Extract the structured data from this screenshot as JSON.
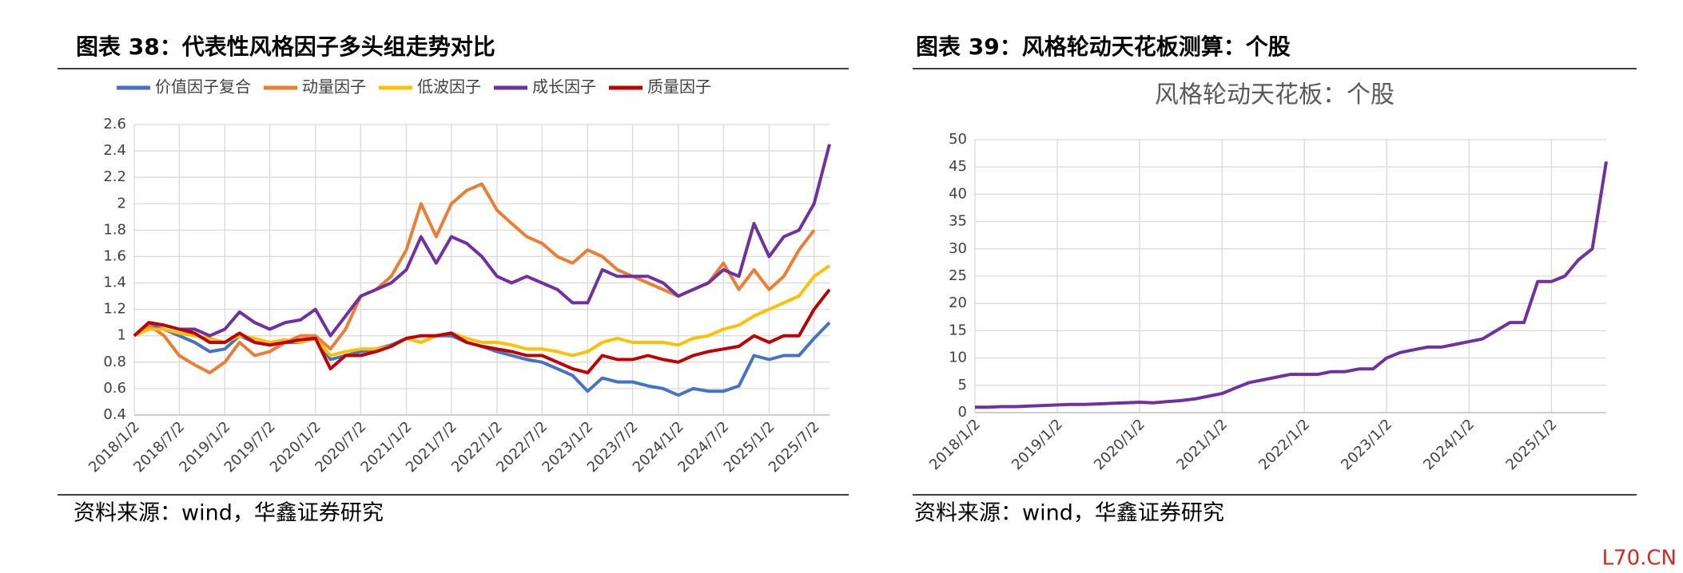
{
  "chart_data": [
    {
      "type": "line",
      "title": "图表 38：代表性风格因子多头组走势对比",
      "note": "资料来源：wind，华鑫证券研究",
      "x": [
        "2018/1/2",
        "2018/3/2",
        "2018/5/2",
        "2018/7/2",
        "2018/9/2",
        "2018/11/2",
        "2019/1/2",
        "2019/3/2",
        "2019/5/2",
        "2019/7/2",
        "2019/9/2",
        "2019/11/2",
        "2020/1/2",
        "2020/3/2",
        "2020/5/2",
        "2020/7/2",
        "2020/9/2",
        "2020/11/2",
        "2021/1/2",
        "2021/3/2",
        "2021/5/2",
        "2021/7/2",
        "2021/9/2",
        "2021/11/2",
        "2022/1/2",
        "2022/3/2",
        "2022/5/2",
        "2022/7/2",
        "2022/9/2",
        "2022/11/2",
        "2023/1/2",
        "2023/3/2",
        "2023/5/2",
        "2023/7/2",
        "2023/9/2",
        "2023/11/2",
        "2024/1/2",
        "2024/3/2",
        "2024/5/2",
        "2024/7/2",
        "2024/9/2",
        "2024/11/2",
        "2025/1/2",
        "2025/3/2",
        "2025/5/2",
        "2025/7/2",
        "2025/9/2"
      ],
      "xlim": [
        "2018/1/2",
        "2025/9/2"
      ],
      "xticks": [
        "2018/1/2",
        "2018/7/2",
        "2019/1/2",
        "2019/7/2",
        "2020/1/2",
        "2020/7/2",
        "2021/1/2",
        "2021/7/2",
        "2022/1/2",
        "2022/7/2",
        "2023/1/2",
        "2023/7/2",
        "2024/1/2",
        "2024/7/2",
        "2025/1/2",
        "2025/7/2"
      ],
      "ylim": [
        0.4,
        2.6
      ],
      "yticks": [
        0.4,
        0.6,
        0.8,
        1,
        1.2,
        1.4,
        1.6,
        1.8,
        2,
        2.2,
        2.4,
        2.6
      ],
      "grid": true,
      "legend": "top",
      "series": [
        {
          "name": "价值因子复合",
          "color": "#4472c4",
          "values": [
            1.0,
            1.08,
            1.05,
            1.0,
            0.95,
            0.88,
            0.9,
            1.0,
            0.95,
            0.93,
            0.95,
            0.95,
            0.98,
            0.82,
            0.85,
            0.88,
            0.9,
            0.93,
            0.98,
            0.95,
            1.0,
            1.0,
            0.95,
            0.92,
            0.88,
            0.85,
            0.82,
            0.8,
            0.75,
            0.7,
            0.58,
            0.68,
            0.65,
            0.65,
            0.62,
            0.6,
            0.55,
            0.6,
            0.58,
            0.58,
            0.62,
            0.85,
            0.82,
            0.85,
            0.85,
            0.98,
            1.1
          ]
        },
        {
          "name": "动量因子",
          "color": "#ed7d31",
          "values": [
            1.0,
            1.08,
            1.0,
            0.85,
            0.78,
            0.72,
            0.8,
            0.95,
            0.85,
            0.88,
            0.95,
            1.0,
            1.0,
            0.9,
            1.05,
            1.3,
            1.35,
            1.45,
            1.65,
            2.0,
            1.75,
            2.0,
            2.1,
            2.15,
            1.95,
            1.85,
            1.75,
            1.7,
            1.6,
            1.55,
            1.65,
            1.6,
            1.5,
            1.45,
            1.4,
            1.35,
            1.3,
            1.35,
            1.4,
            1.55,
            1.35,
            1.5,
            1.35,
            1.45,
            1.65,
            1.8,
            null
          ]
        },
        {
          "name": "低波因子",
          "color": "#ffc000",
          "values": [
            1.0,
            1.05,
            1.05,
            1.02,
            1.0,
            0.98,
            0.95,
            1.0,
            0.98,
            0.95,
            0.97,
            0.95,
            0.98,
            0.85,
            0.88,
            0.9,
            0.9,
            0.92,
            0.98,
            0.95,
            1.0,
            1.02,
            0.98,
            0.95,
            0.95,
            0.93,
            0.9,
            0.9,
            0.88,
            0.85,
            0.88,
            0.95,
            0.98,
            0.95,
            0.95,
            0.95,
            0.93,
            0.98,
            1.0,
            1.05,
            1.08,
            1.15,
            1.2,
            1.25,
            1.3,
            1.45,
            1.53
          ]
        },
        {
          "name": "成长因子",
          "color": "#7030a0",
          "values": [
            1.0,
            1.1,
            1.08,
            1.05,
            1.05,
            1.0,
            1.05,
            1.18,
            1.1,
            1.05,
            1.1,
            1.12,
            1.2,
            1.0,
            1.15,
            1.3,
            1.35,
            1.4,
            1.5,
            1.75,
            1.55,
            1.75,
            1.7,
            1.6,
            1.45,
            1.4,
            1.45,
            1.4,
            1.35,
            1.25,
            1.25,
            1.5,
            1.45,
            1.45,
            1.45,
            1.4,
            1.3,
            1.35,
            1.4,
            1.5,
            1.45,
            1.85,
            1.6,
            1.75,
            1.8,
            2.0,
            2.45
          ]
        },
        {
          "name": "质量因子",
          "color": "#c00000",
          "values": [
            1.0,
            1.1,
            1.08,
            1.05,
            1.02,
            0.95,
            0.95,
            1.02,
            0.95,
            0.93,
            0.95,
            0.97,
            0.98,
            0.75,
            0.85,
            0.85,
            0.88,
            0.92,
            0.98,
            1.0,
            1.0,
            1.02,
            0.95,
            0.92,
            0.9,
            0.88,
            0.85,
            0.85,
            0.8,
            0.75,
            0.72,
            0.85,
            0.82,
            0.82,
            0.85,
            0.82,
            0.8,
            0.85,
            0.88,
            0.9,
            0.92,
            1.0,
            0.95,
            1.0,
            1.0,
            1.2,
            1.35
          ]
        }
      ]
    },
    {
      "type": "line",
      "title": "图表 39：风格轮动天花板测算：个股",
      "subtitle": "风格轮动天花板：个股",
      "note": "资料来源：wind，华鑫证券研究",
      "x": [
        "2018/1/2",
        "2018/3/2",
        "2018/5/2",
        "2018/7/2",
        "2018/9/2",
        "2018/11/2",
        "2019/1/2",
        "2019/3/2",
        "2019/5/2",
        "2019/7/2",
        "2019/9/2",
        "2019/11/2",
        "2020/1/2",
        "2020/3/2",
        "2020/5/2",
        "2020/7/2",
        "2020/9/2",
        "2020/11/2",
        "2021/1/2",
        "2021/3/2",
        "2021/5/2",
        "2021/7/2",
        "2021/9/2",
        "2021/11/2",
        "2022/1/2",
        "2022/3/2",
        "2022/5/2",
        "2022/7/2",
        "2022/9/2",
        "2022/11/2",
        "2023/1/2",
        "2023/3/2",
        "2023/5/2",
        "2023/7/2",
        "2023/9/2",
        "2023/11/2",
        "2024/1/2",
        "2024/3/2",
        "2024/5/2",
        "2024/7/2",
        "2024/9/2",
        "2024/11/2",
        "2025/1/2",
        "2025/3/2",
        "2025/5/2",
        "2025/7/2",
        "2025/9/2"
      ],
      "xlim": [
        "2018/1/2",
        "2025/9/2"
      ],
      "xticks": [
        "2018/1/2",
        "2019/1/2",
        "2020/1/2",
        "2021/1/2",
        "2022/1/2",
        "2023/1/2",
        "2024/1/2",
        "2025/1/2"
      ],
      "ylim": [
        0,
        50
      ],
      "yticks": [
        0,
        5,
        10,
        15,
        20,
        25,
        30,
        35,
        40,
        45,
        50
      ],
      "grid": true,
      "series": [
        {
          "color": "#7030a0",
          "values": [
            1.0,
            1.0,
            1.1,
            1.1,
            1.2,
            1.3,
            1.4,
            1.5,
            1.5,
            1.6,
            1.7,
            1.8,
            1.9,
            1.8,
            2.0,
            2.2,
            2.5,
            3,
            3.5,
            4.5,
            5.5,
            6,
            6.5,
            7,
            7,
            7,
            7.5,
            7.5,
            8,
            8,
            10,
            11,
            11.5,
            12,
            12,
            12.5,
            13,
            13.5,
            15,
            16.5,
            16.5,
            24,
            24,
            25,
            28,
            30,
            46
          ]
        }
      ]
    }
  ],
  "watermark": "L70.CN"
}
